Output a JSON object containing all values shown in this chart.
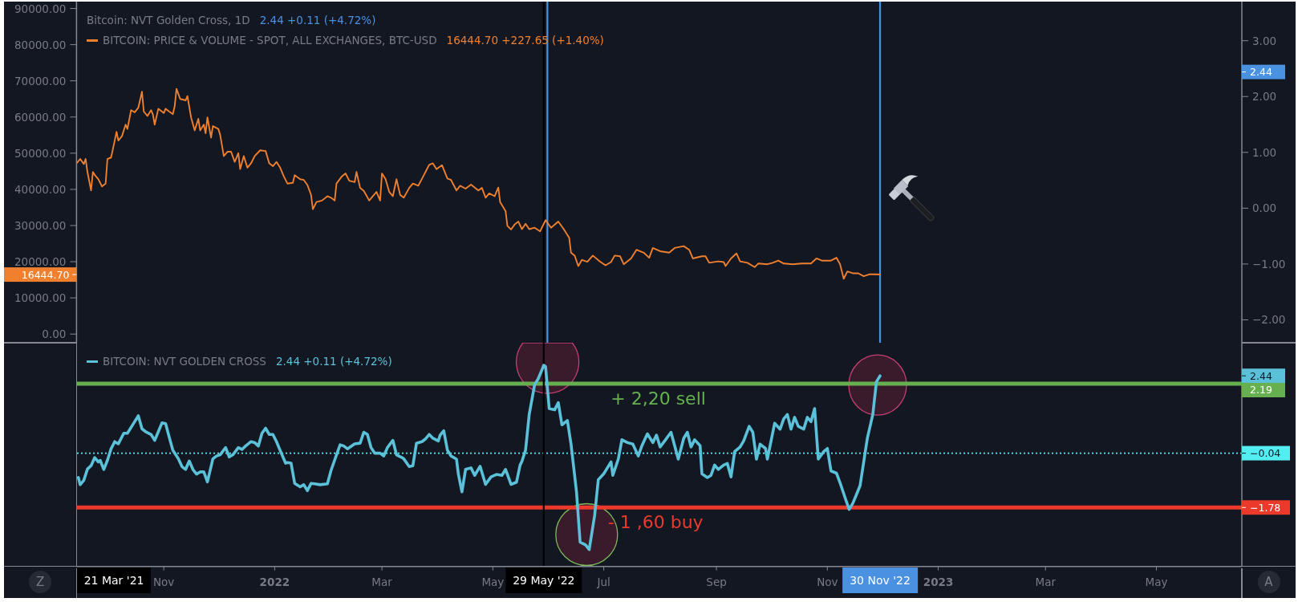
{
  "chart_data": [
    {
      "type": "line",
      "title": "Bitcoin: NVT Golden Cross, 1D",
      "subtitle": "2.44 +0.11 (+4.72%)",
      "x": [
        "2021-09-14",
        "2021-09-16",
        "2021-09-18",
        "2021-09-19",
        "2021-09-20",
        "2021-09-22",
        "2021-09-23",
        "2021-09-24",
        "2021-09-26",
        "2021-09-28",
        "2021-09-30",
        "2021-10-01",
        "2021-10-03",
        "2021-10-04",
        "2021-10-06",
        "2021-10-07",
        "2021-10-09",
        "2021-10-11",
        "2021-10-12",
        "2021-10-14",
        "2021-10-16",
        "2021-10-18",
        "2021-10-20",
        "2021-10-21",
        "2021-10-23",
        "2021-10-25",
        "2021-10-26",
        "2021-10-27",
        "2021-10-29",
        "2021-11-01",
        "2021-11-02",
        "2021-11-04",
        "2021-11-06",
        "2021-11-07",
        "2021-11-08",
        "2021-11-10",
        "2021-11-13",
        "2021-11-14",
        "2021-11-16",
        "2021-11-18",
        "2021-11-20",
        "2021-11-21",
        "2021-11-23",
        "2021-11-24",
        "2021-11-25",
        "2021-11-27",
        "2021-11-28",
        "2021-12-01",
        "2021-12-02",
        "2021-12-04",
        "2021-12-06",
        "2021-12-08",
        "2021-12-10",
        "2021-12-12",
        "2021-12-13",
        "2021-12-15",
        "2021-12-17",
        "2021-12-19",
        "2021-12-21",
        "2021-12-24",
        "2021-12-27",
        "2021-12-29",
        "2021-12-31",
        "2022-01-02",
        "2022-01-04",
        "2022-01-06",
        "2022-01-08",
        "2022-01-11",
        "2022-01-12",
        "2022-01-15",
        "2022-01-17",
        "2022-01-19",
        "2022-01-21",
        "2022-01-22",
        "2022-01-24",
        "2022-01-27",
        "2022-01-30",
        "2022-02-01",
        "2022-02-03",
        "2022-02-04",
        "2022-02-07",
        "2022-02-09",
        "2022-02-11",
        "2022-02-14",
        "2022-02-15",
        "2022-02-17",
        "2022-02-19",
        "2022-02-22",
        "2022-02-24",
        "2022-02-26",
        "2022-02-28",
        "2022-03-01",
        "2022-03-03",
        "2022-03-05",
        "2022-03-07",
        "2022-03-09",
        "2022-03-11",
        "2022-03-13",
        "2022-03-16",
        "2022-03-18",
        "2022-03-21",
        "2022-03-24",
        "2022-03-27",
        "2022-03-29",
        "2022-03-31",
        "2022-04-03",
        "2022-04-06",
        "2022-04-08",
        "2022-04-11",
        "2022-04-13",
        "2022-04-16",
        "2022-04-19",
        "2022-04-23",
        "2022-04-25",
        "2022-04-27",
        "2022-04-29",
        "2022-05-02",
        "2022-05-04",
        "2022-05-05",
        "2022-05-08",
        "2022-05-09",
        "2022-05-11",
        "2022-05-13",
        "2022-05-15",
        "2022-05-17",
        "2022-05-19",
        "2022-05-21",
        "2022-05-24",
        "2022-05-27",
        "2022-05-30",
        "2022-06-02",
        "2022-06-06",
        "2022-06-09",
        "2022-06-12",
        "2022-06-13",
        "2022-06-15",
        "2022-06-17",
        "2022-06-19",
        "2022-06-22",
        "2022-06-25",
        "2022-06-29",
        "2022-07-02",
        "2022-07-05",
        "2022-07-07",
        "2022-07-10",
        "2022-07-12",
        "2022-07-16",
        "2022-07-19",
        "2022-07-23",
        "2022-07-26",
        "2022-07-28",
        "2022-08-01",
        "2022-08-06",
        "2022-08-09",
        "2022-08-14",
        "2022-08-17",
        "2022-08-19",
        "2022-08-24",
        "2022-08-26",
        "2022-08-28",
        "2022-09-02",
        "2022-09-05",
        "2022-09-06",
        "2022-09-09",
        "2022-09-12",
        "2022-09-14",
        "2022-09-18",
        "2022-09-22",
        "2022-09-24",
        "2022-09-29",
        "2022-10-02",
        "2022-10-05",
        "2022-10-08",
        "2022-10-13",
        "2022-10-18",
        "2022-10-23",
        "2022-10-26",
        "2022-10-29",
        "2022-11-03",
        "2022-11-06",
        "2022-11-08",
        "2022-11-10",
        "2022-11-12",
        "2022-11-15",
        "2022-11-18",
        "2022-11-21",
        "2022-11-24",
        "2022-11-28",
        "2022-11-30"
      ],
      "series": [
        {
          "name": "BITCOIN: PRICE & VOLUME - SPOT, ALL EXCHANGES, BTC-USD",
          "color": "#f0802e",
          "values": [
            47200,
            48400,
            47000,
            48400,
            44800,
            39700,
            44800,
            44000,
            42800,
            40800,
            41600,
            48400,
            48800,
            51100,
            55900,
            53500,
            54700,
            57900,
            56700,
            61900,
            61300,
            62600,
            67000,
            61500,
            60300,
            61900,
            60700,
            57900,
            62300,
            61100,
            62300,
            61500,
            60800,
            63000,
            67800,
            65000,
            64600,
            65800,
            59900,
            56300,
            59500,
            56300,
            57900,
            55500,
            59900,
            54300,
            57500,
            56700,
            55100,
            49200,
            50400,
            50400,
            47600,
            50000,
            45600,
            49200,
            46000,
            47200,
            49200,
            50800,
            50600,
            47200,
            46400,
            47600,
            46000,
            43600,
            41600,
            41800,
            43900,
            42800,
            42600,
            41200,
            38500,
            34500,
            36500,
            36900,
            38100,
            37700,
            36900,
            41600,
            43600,
            44400,
            42400,
            42000,
            44800,
            40400,
            39600,
            36900,
            38100,
            39300,
            36900,
            44400,
            42800,
            39300,
            38100,
            42800,
            38500,
            37700,
            40400,
            41600,
            41000,
            43900,
            46800,
            47200,
            45600,
            46700,
            43000,
            42600,
            39700,
            41000,
            40200,
            41300,
            39700,
            40400,
            37700,
            38900,
            38100,
            40500,
            36500,
            34000,
            29900,
            28900,
            30300,
            31100,
            29000,
            30500,
            29000,
            29400,
            28400,
            31500,
            29400,
            31100,
            29000,
            26600,
            22500,
            21700,
            18800,
            20500,
            20000,
            21700,
            20000,
            19000,
            19900,
            21700,
            21500,
            19300,
            20900,
            23300,
            22500,
            21100,
            23800,
            22900,
            22500,
            23800,
            24300,
            23300,
            20900,
            21500,
            21500,
            19700,
            20100,
            19900,
            18800,
            20900,
            22300,
            20100,
            19700,
            18500,
            19500,
            19300,
            19700,
            20300,
            19500,
            19300,
            19500,
            19500,
            20900,
            20300,
            20300,
            21100,
            19300,
            15300,
            17300,
            16800,
            16800,
            16000,
            16500,
            16500,
            16444.7
          ]
        }
      ],
      "annotations": [
        "16444.70 +227.65 (+1.40%)"
      ],
      "legend": "top left",
      "tick_labels": "y",
      "xlim": [
        "2021-09-14",
        "2023-06-17"
      ],
      "xticks": [
        {
          "value": "2021-11-01",
          "label": null
        },
        {
          "value": "2022-01-01",
          "label": null
        },
        {
          "value": "2022-03-01",
          "label": null
        },
        {
          "value": "2022-05-01",
          "label": null
        },
        {
          "value": "2022-07-01",
          "label": null
        },
        {
          "value": "2022-09-01",
          "label": null
        },
        {
          "value": "2022-11-01",
          "label": null
        },
        {
          "value": "2023-01-01",
          "label": null
        },
        {
          "value": "2023-03-01",
          "label": null
        },
        {
          "value": "2023-05-01",
          "label": null
        }
      ],
      "ylim": [
        -2400,
        91900
      ],
      "yticks": [
        {
          "value": 0,
          "label": "0.00"
        },
        {
          "value": 10000,
          "label": "10000.00"
        },
        {
          "value": 20000,
          "label": "20000.00"
        },
        {
          "value": 30000,
          "label": "30000.00"
        },
        {
          "value": 40000,
          "label": "40000.00"
        },
        {
          "value": 50000,
          "label": "50000.00"
        },
        {
          "value": 60000,
          "label": "60000.00"
        },
        {
          "value": 70000,
          "label": "70000.00"
        },
        {
          "value": 80000,
          "label": "80000.00"
        },
        {
          "value": 90000,
          "label": "90000.00"
        },
        {
          "value": 16444.7,
          "label": "16444.70"
        }
      ],
      "y2lim": [
        -2.41,
        3.7
      ],
      "y2ticks": [
        {
          "value": -2,
          "label": "−2.00"
        },
        {
          "value": -1,
          "label": "−1.00"
        },
        {
          "value": 0,
          "label": "0.00"
        },
        {
          "value": 1,
          "label": "1.00"
        },
        {
          "value": 2,
          "label": "2.00"
        },
        {
          "value": 3,
          "label": "3.00"
        },
        2.44
      ],
      "ref_lines": [
        {
          "axis": "x",
          "value": "2022-05-29",
          "color": "#000000"
        },
        {
          "axis": "x",
          "value": "2022-05-31",
          "color": "#4a91e2"
        },
        {
          "axis": "x",
          "value": "2022-11-30",
          "color": "#4a91e2"
        }
      ]
    },
    {
      "type": "line",
      "x": [
        "2021-09-15",
        "2021-09-16",
        "2021-09-18",
        "2021-09-20",
        "2021-09-22",
        "2021-09-24",
        "2021-09-26",
        "2021-09-27",
        "2021-09-29",
        "2021-10-01",
        "2021-10-03",
        "2021-10-05",
        "2021-10-07",
        "2021-10-10",
        "2021-10-12",
        "2021-10-15",
        "2021-10-18",
        "2021-10-20",
        "2021-10-22",
        "2021-10-25",
        "2021-10-27",
        "2021-10-29",
        "2021-10-31",
        "2021-11-02",
        "2021-11-04",
        "2021-11-06",
        "2021-11-09",
        "2021-11-11",
        "2021-11-13",
        "2021-11-15",
        "2021-11-17",
        "2021-11-19",
        "2021-11-21",
        "2021-11-23",
        "2021-11-25",
        "2021-11-28",
        "2021-11-30",
        "2021-12-02",
        "2021-12-05",
        "2021-12-07",
        "2021-12-09",
        "2021-12-12",
        "2021-12-14",
        "2021-12-16",
        "2021-12-19",
        "2021-12-21",
        "2021-12-23",
        "2021-12-25",
        "2021-12-27",
        "2021-12-29",
        "2021-12-31",
        "2022-01-02",
        "2022-01-04",
        "2022-01-07",
        "2022-01-08",
        "2022-01-10",
        "2022-01-12",
        "2022-01-15",
        "2022-01-17",
        "2022-01-19",
        "2022-01-21",
        "2022-01-23",
        "2022-01-26",
        "2022-01-30",
        "2022-02-01",
        "2022-02-04",
        "2022-02-06",
        "2022-02-08",
        "2022-02-10",
        "2022-02-14",
        "2022-02-17",
        "2022-02-19",
        "2022-02-21",
        "2022-02-23",
        "2022-02-25",
        "2022-02-28",
        "2022-03-02",
        "2022-03-04",
        "2022-03-07",
        "2022-03-09",
        "2022-03-12",
        "2022-03-13",
        "2022-03-16",
        "2022-03-18",
        "2022-03-20",
        "2022-03-23",
        "2022-03-25",
        "2022-03-27",
        "2022-03-29",
        "2022-04-01",
        "2022-04-02",
        "2022-04-04",
        "2022-04-06",
        "2022-04-08",
        "2022-04-11",
        "2022-04-12",
        "2022-04-14",
        "2022-04-16",
        "2022-04-19",
        "2022-04-21",
        "2022-04-24",
        "2022-04-27",
        "2022-04-30",
        "2022-05-03",
        "2022-05-06",
        "2022-05-08",
        "2022-05-11",
        "2022-05-14",
        "2022-05-16",
        "2022-05-17",
        "2022-05-19",
        "2022-05-21",
        "2022-05-24",
        "2022-05-26",
        "2022-05-28",
        "2022-05-29",
        "2022-05-30",
        "2022-06-01",
        "2022-06-04",
        "2022-06-06",
        "2022-06-08",
        "2022-06-11",
        "2022-06-13",
        "2022-06-16",
        "2022-06-18",
        "2022-06-21",
        "2022-06-23",
        "2022-06-26",
        "2022-06-28",
        "2022-07-01",
        "2022-07-03",
        "2022-07-05",
        "2022-07-06",
        "2022-07-09",
        "2022-07-11",
        "2022-07-14",
        "2022-07-17",
        "2022-07-20",
        "2022-07-22",
        "2022-07-25",
        "2022-07-28",
        "2022-07-30",
        "2022-08-01",
        "2022-08-04",
        "2022-08-07",
        "2022-08-09",
        "2022-08-11",
        "2022-08-14",
        "2022-08-16",
        "2022-08-18",
        "2022-08-20",
        "2022-08-23",
        "2022-08-24",
        "2022-08-27",
        "2022-08-29",
        "2022-08-31",
        "2022-09-02",
        "2022-09-05",
        "2022-09-07",
        "2022-09-09",
        "2022-09-11",
        "2022-09-14",
        "2022-09-16",
        "2022-09-19",
        "2022-09-21",
        "2022-09-23",
        "2022-09-25",
        "2022-09-28",
        "2022-09-29",
        "2022-10-02",
        "2022-10-03",
        "2022-10-06",
        "2022-10-08",
        "2022-10-10",
        "2022-10-12",
        "2022-10-14",
        "2022-10-16",
        "2022-10-19",
        "2022-10-21",
        "2022-10-23",
        "2022-10-25",
        "2022-10-27",
        "2022-10-30",
        "2022-11-01",
        "2022-11-03",
        "2022-11-06",
        "2022-11-08",
        "2022-11-11",
        "2022-11-13",
        "2022-11-15",
        "2022-11-17",
        "2022-11-19",
        "2022-11-21",
        "2022-11-23",
        "2022-11-26",
        "2022-11-28",
        "2022-11-30"
      ],
      "series": [
        {
          "name": "BITCOIN: NVT GOLDEN CROSS",
          "color": "#5ac1d9",
          "values": [
            -0.82,
            -1.05,
            -0.91,
            -0.55,
            -0.44,
            -0.18,
            -0.32,
            -0.27,
            -0.56,
            -0.27,
            0.1,
            0.33,
            0.26,
            0.6,
            0.6,
            0.88,
            1.16,
            0.74,
            0.65,
            0.56,
            0.37,
            0.65,
            0.93,
            0.91,
            0.47,
            0.05,
            -0.22,
            -0.47,
            -0.56,
            -0.29,
            -0.56,
            -0.71,
            -0.64,
            -0.64,
            -0.96,
            -0.22,
            -0.13,
            -0.09,
            0.14,
            -0.16,
            -0.09,
            0.14,
            0.08,
            0.19,
            0.33,
            0.3,
            0.19,
            0.6,
            0.76,
            0.56,
            0.56,
            0.33,
            0.05,
            -0.36,
            -0.34,
            -0.36,
            -1.01,
            -1.12,
            -1.05,
            -1.24,
            -1.01,
            -1.02,
            -1.05,
            -1.02,
            -0.59,
            -0.09,
            0.23,
            0.19,
            0.1,
            0.26,
            0.28,
            0.63,
            0.56,
            0.14,
            -0.04,
            -0.04,
            -0.13,
            0.14,
            0.37,
            -0.09,
            -0.18,
            -0.22,
            -0.47,
            -0.44,
            0.28,
            0.33,
            0.42,
            0.56,
            0.44,
            0.35,
            0.54,
            0.68,
            0.06,
            -0.13,
            -0.23,
            -0.7,
            -1.28,
            -0.56,
            -0.51,
            -0.75,
            -0.46,
            -1.04,
            -0.8,
            -0.72,
            -0.75,
            -0.56,
            -1.04,
            -0.97,
            -0.42,
            -0.3,
            0.06,
            1.2,
            2.16,
            2.35,
            2.63,
            2.78,
            2.73,
            1.39,
            1.35,
            1.58,
            0.87,
            1.01,
            0.25,
            -1.27,
            -2.89,
            -2.98,
            -3.13,
            -2.03,
            -0.89,
            -0.7,
            -0.51,
            -0.32,
            -0.75,
            -0.23,
            0.39,
            0.3,
            0.25,
            -0.13,
            0.2,
            0.58,
            0.3,
            0.54,
            0.16,
            0.39,
            0.63,
            0.2,
            -0.23,
            0.44,
            0.63,
            0.16,
            0.39,
            0.2,
            -0.7,
            -0.82,
            -0.75,
            -0.42,
            -0.56,
            -0.42,
            -0.37,
            -0.8,
            0.01,
            0.16,
            0.36,
            0.82,
            0.63,
            -0.23,
            0.25,
            0.11,
            -0.23,
            0.63,
            0.92,
            0.73,
            1.06,
            1.2,
            0.73,
            1.11,
            0.82,
            0.73,
            1.11,
            0.97,
            1.39,
            -0.23,
            0.01,
            0.11,
            -0.61,
            -0.68,
            -0.99,
            -1.51,
            -1.84,
            -1.65,
            -1.37,
            -1.08,
            -0.32,
            0.44,
            1.2,
            2.25,
            2.44
          ]
        }
      ],
      "annotations": [
        "2.44 +0.11 (+4.72%)",
        "21 Mar '21",
        "Z",
        "A",
        "30 Nov '22",
        {
          "text": "+ 2,20 sell",
          "x": "2022-07-31",
          "y": 2.19
        }
      ],
      "legend": "top left",
      "xlim": [
        "2021-09-14",
        "2023-06-17"
      ],
      "xticks": [
        {
          "value": "2021-11-01",
          "label": "Nov"
        },
        {
          "value": "2022-01-01",
          "label": "2022"
        },
        {
          "value": "2022-03-01",
          "label": "Mar"
        },
        {
          "value": "2022-05-01",
          "label": "May"
        },
        {
          "value": "2022-07-01",
          "label": "Jul"
        },
        {
          "value": "2022-09-01",
          "label": "Sep"
        },
        {
          "value": "2022-11-01",
          "label": "Nov"
        },
        {
          "value": "2023-01-01",
          "label": "2023"
        },
        {
          "value": "2023-03-01",
          "label": "Mar"
        },
        {
          "value": "2023-05-01",
          "label": "May"
        }
      ],
      "ylim": [
        -3.67,
        3.5
      ],
      "yticks": [
        {
          "value": -1.78,
          "label": "−1.78"
        },
        {
          "value": -0.04,
          "label": "−0.04"
        },
        2.44
      ],
      "ref_lines": [
        {
          "axis": "y",
          "value": 2.19,
          "label": "2.19",
          "color": "#66b04f"
        },
        {
          "axis": "y",
          "value": -1.78,
          "label": "- 1 ,60 buy",
          "color": "#eb3a2c"
        },
        {
          "axis": "y",
          "value": -0.04,
          "color": "#52eef2",
          "line_style": "dotted"
        },
        {
          "axis": "x",
          "value": "2022-05-29",
          "label": "29 May '22",
          "color": "#000000"
        }
      ]
    }
  ]
}
